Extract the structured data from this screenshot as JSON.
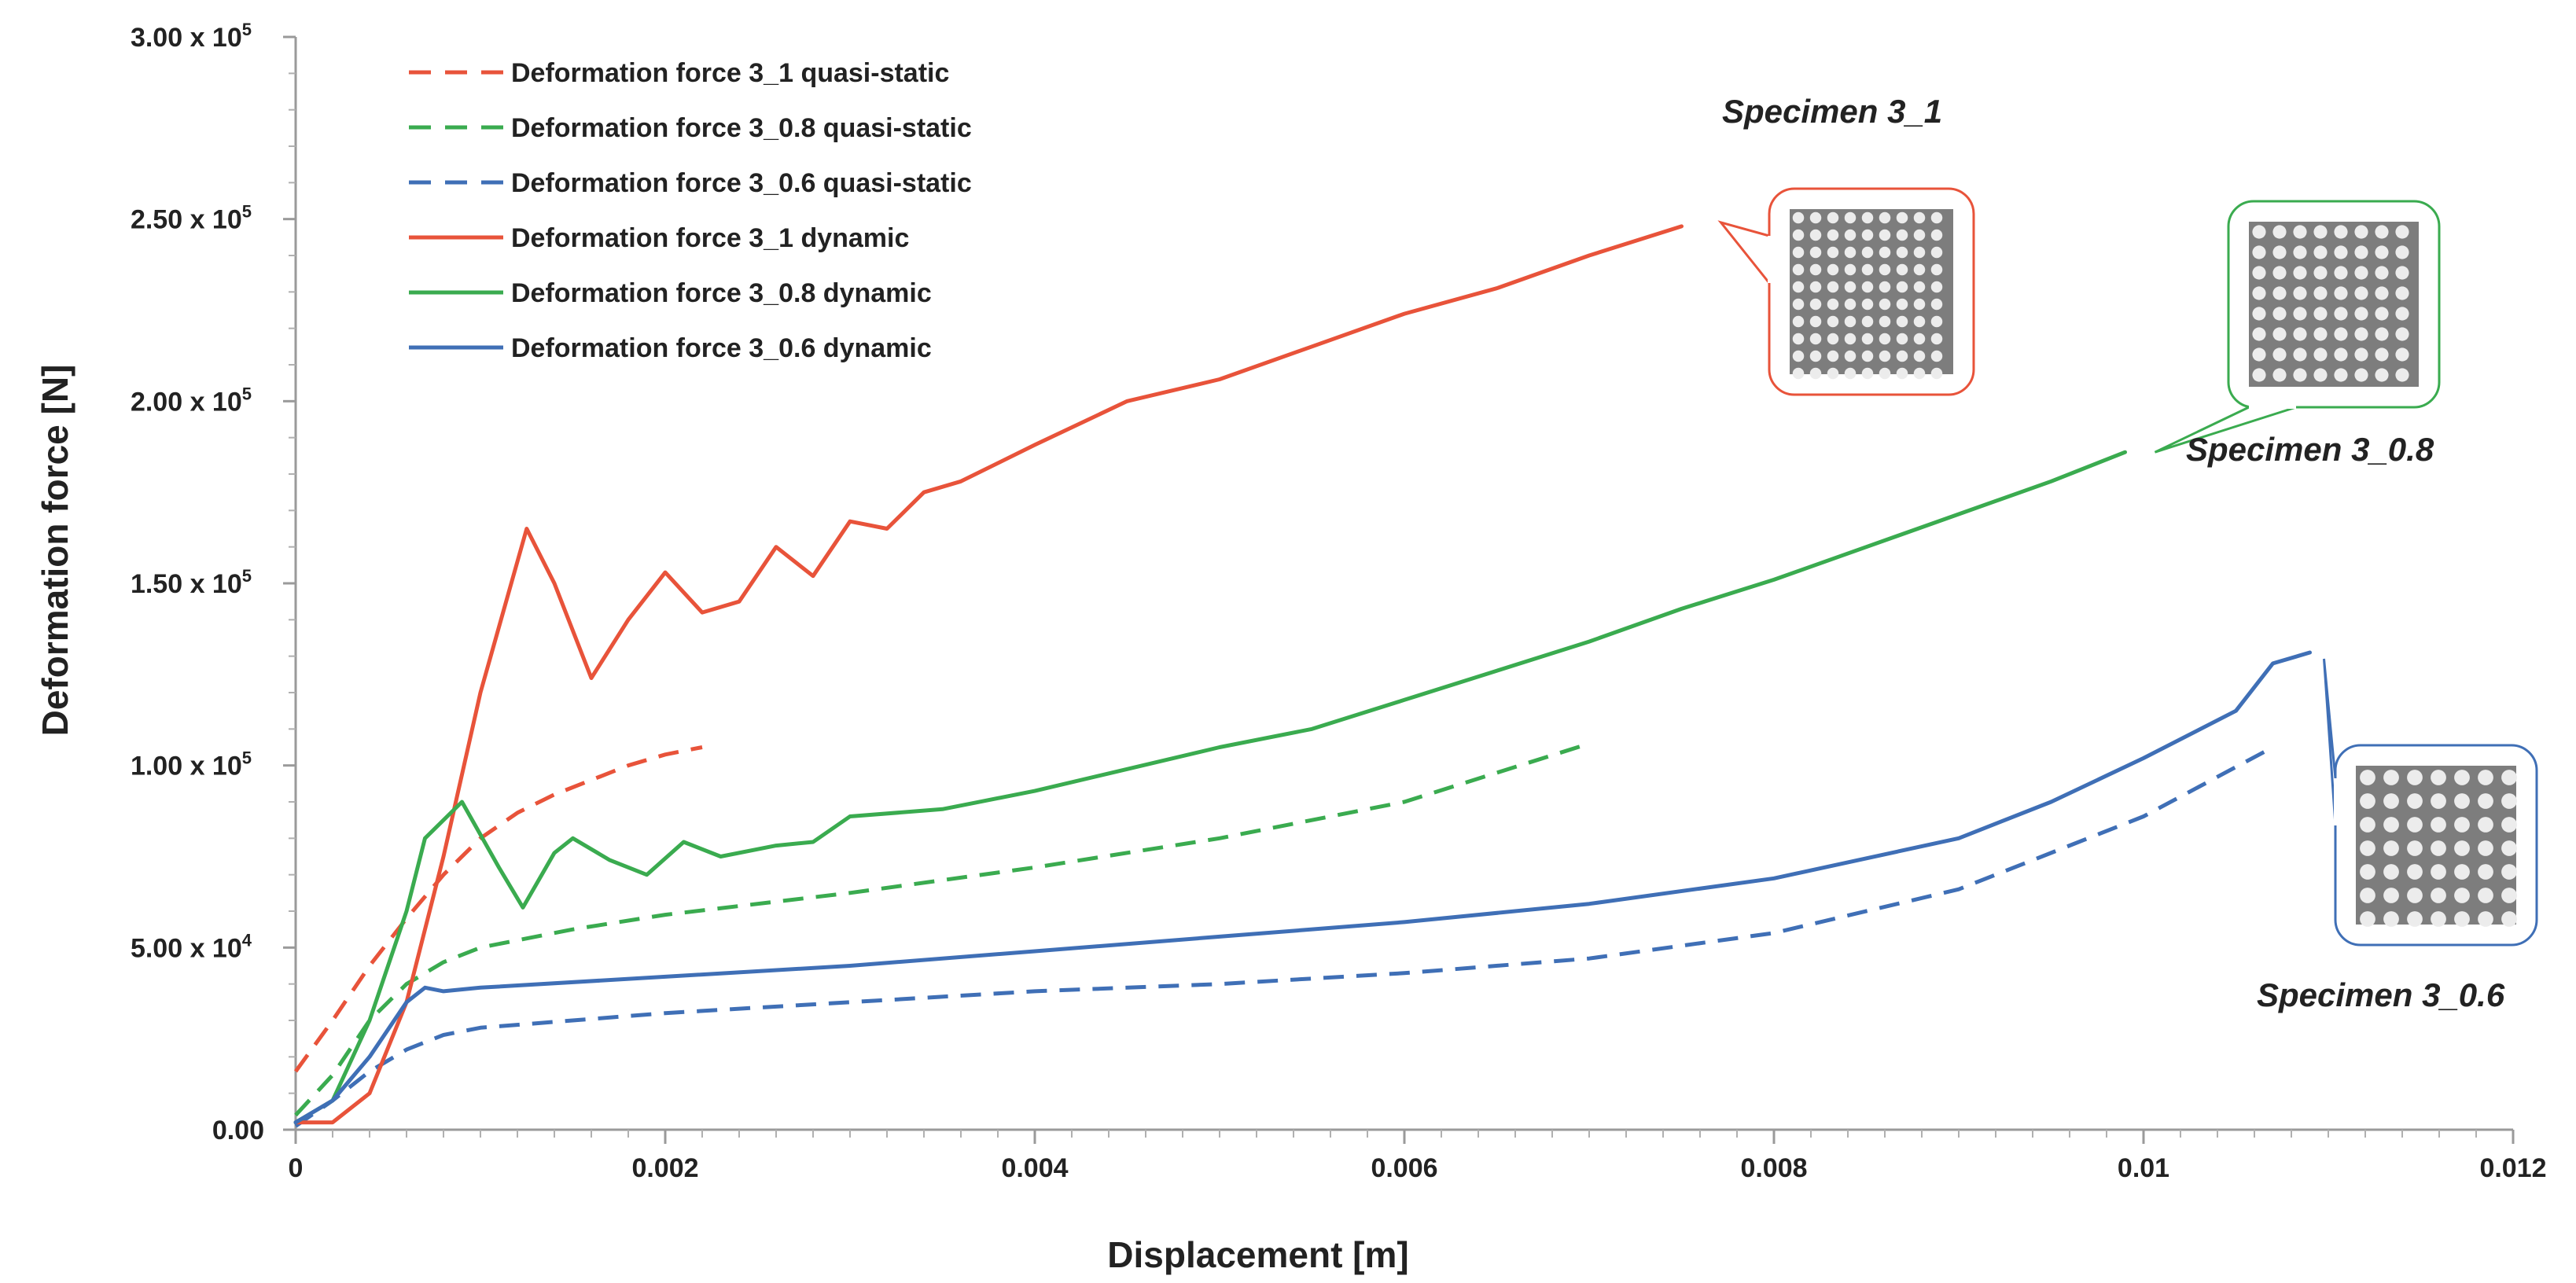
{
  "chart_data": {
    "type": "line",
    "xlabel": "Displacement [m]",
    "ylabel": "Deformation force [N]",
    "xlim": [
      0,
      0.012
    ],
    "ylim": [
      0,
      300000
    ],
    "x_ticks": [
      "0",
      "0.002",
      "0.004",
      "0.006",
      "0.008",
      "0.01",
      "0.012"
    ],
    "y_ticks": [
      {
        "mantissa": "0.00",
        "exp": ""
      },
      {
        "mantissa": "5.00 x 10",
        "exp": "4"
      },
      {
        "mantissa": "1.00 x 10",
        "exp": "5"
      },
      {
        "mantissa": "1.50 x 10",
        "exp": "5"
      },
      {
        "mantissa": "2.00 x 10",
        "exp": "5"
      },
      {
        "mantissa": "2.50 x 10",
        "exp": "5"
      },
      {
        "mantissa": "3.00 x 10",
        "exp": "5"
      }
    ],
    "grid": false,
    "legend_position": "top-left",
    "annotations": [
      "Specimen 3_1",
      "Specimen 3_0.8",
      "Specimen 3_0.6"
    ],
    "series": [
      {
        "name": "Deformation force 3_1 quasi-static",
        "style": "dashed",
        "color": "#e8533a",
        "points": [
          [
            0,
            16000
          ],
          [
            0.0002,
            30000
          ],
          [
            0.0004,
            45000
          ],
          [
            0.0006,
            58000
          ],
          [
            0.0008,
            70000
          ],
          [
            0.001,
            80000
          ],
          [
            0.0012,
            87000
          ],
          [
            0.0014,
            92000
          ],
          [
            0.0016,
            96000
          ],
          [
            0.0018,
            100000
          ],
          [
            0.002,
            103000
          ],
          [
            0.0022,
            105000
          ]
        ]
      },
      {
        "name": "Deformation force 3_0.8 quasi-static",
        "style": "dashed",
        "color": "#3aab4f",
        "points": [
          [
            0,
            4000
          ],
          [
            0.0002,
            15000
          ],
          [
            0.0004,
            30000
          ],
          [
            0.0006,
            40000
          ],
          [
            0.0008,
            46000
          ],
          [
            0.001,
            50000
          ],
          [
            0.0015,
            55000
          ],
          [
            0.002,
            59000
          ],
          [
            0.003,
            65000
          ],
          [
            0.004,
            72000
          ],
          [
            0.005,
            80000
          ],
          [
            0.006,
            90000
          ],
          [
            0.007,
            106000
          ]
        ]
      },
      {
        "name": "Deformation force 3_0.6 quasi-static",
        "style": "dashed",
        "color": "#3f6fb6",
        "points": [
          [
            0,
            1000
          ],
          [
            0.0002,
            8000
          ],
          [
            0.0004,
            16000
          ],
          [
            0.0006,
            22000
          ],
          [
            0.0008,
            26000
          ],
          [
            0.001,
            28000
          ],
          [
            0.002,
            32000
          ],
          [
            0.003,
            35000
          ],
          [
            0.004,
            38000
          ],
          [
            0.005,
            40000
          ],
          [
            0.006,
            43000
          ],
          [
            0.007,
            47000
          ],
          [
            0.008,
            54000
          ],
          [
            0.009,
            66000
          ],
          [
            0.01,
            86000
          ],
          [
            0.0107,
            105000
          ]
        ]
      },
      {
        "name": "Deformation force 3_1 dynamic",
        "style": "solid",
        "color": "#e8533a",
        "points": [
          [
            0,
            2000
          ],
          [
            0.0002,
            2000
          ],
          [
            0.0004,
            10000
          ],
          [
            0.0006,
            35000
          ],
          [
            0.0008,
            75000
          ],
          [
            0.001,
            120000
          ],
          [
            0.00125,
            165000
          ],
          [
            0.0014,
            150000
          ],
          [
            0.0016,
            124000
          ],
          [
            0.0018,
            140000
          ],
          [
            0.002,
            153000
          ],
          [
            0.0022,
            142000
          ],
          [
            0.0024,
            145000
          ],
          [
            0.0026,
            160000
          ],
          [
            0.0028,
            152000
          ],
          [
            0.003,
            167000
          ],
          [
            0.0032,
            165000
          ],
          [
            0.0034,
            175000
          ],
          [
            0.0036,
            178000
          ],
          [
            0.004,
            188000
          ],
          [
            0.0045,
            200000
          ],
          [
            0.005,
            206000
          ],
          [
            0.0055,
            215000
          ],
          [
            0.006,
            224000
          ],
          [
            0.0065,
            231000
          ],
          [
            0.007,
            240000
          ],
          [
            0.0075,
            248000
          ]
        ]
      },
      {
        "name": "Deformation force 3_0.8 dynamic",
        "style": "solid",
        "color": "#3aab4f",
        "points": [
          [
            0,
            2000
          ],
          [
            0.0002,
            8000
          ],
          [
            0.0004,
            30000
          ],
          [
            0.0006,
            60000
          ],
          [
            0.0007,
            80000
          ],
          [
            0.0009,
            90000
          ],
          [
            0.0011,
            72000
          ],
          [
            0.00123,
            61000
          ],
          [
            0.0014,
            76000
          ],
          [
            0.0015,
            80000
          ],
          [
            0.0017,
            74000
          ],
          [
            0.0019,
            70000
          ],
          [
            0.0021,
            79000
          ],
          [
            0.0023,
            75000
          ],
          [
            0.0026,
            78000
          ],
          [
            0.0028,
            79000
          ],
          [
            0.003,
            86000
          ],
          [
            0.0035,
            88000
          ],
          [
            0.004,
            93000
          ],
          [
            0.0045,
            99000
          ],
          [
            0.005,
            105000
          ],
          [
            0.0055,
            110000
          ],
          [
            0.006,
            118000
          ],
          [
            0.0065,
            126000
          ],
          [
            0.007,
            134000
          ],
          [
            0.0075,
            143000
          ],
          [
            0.008,
            151000
          ],
          [
            0.0085,
            160000
          ],
          [
            0.009,
            169000
          ],
          [
            0.0095,
            178000
          ],
          [
            0.0099,
            186000
          ]
        ]
      },
      {
        "name": "Deformation force 3_0.6 dynamic",
        "style": "solid",
        "color": "#3f6fb6",
        "points": [
          [
            0,
            2000
          ],
          [
            0.0002,
            8000
          ],
          [
            0.0004,
            20000
          ],
          [
            0.0006,
            35000
          ],
          [
            0.0007,
            39000
          ],
          [
            0.0008,
            38000
          ],
          [
            0.001,
            39000
          ],
          [
            0.002,
            42000
          ],
          [
            0.003,
            45000
          ],
          [
            0.004,
            49000
          ],
          [
            0.005,
            53000
          ],
          [
            0.006,
            57000
          ],
          [
            0.007,
            62000
          ],
          [
            0.008,
            69000
          ],
          [
            0.009,
            80000
          ],
          [
            0.0095,
            90000
          ],
          [
            0.01,
            102000
          ],
          [
            0.0105,
            115000
          ],
          [
            0.0107,
            128000
          ],
          [
            0.0109,
            131000
          ]
        ]
      }
    ]
  }
}
